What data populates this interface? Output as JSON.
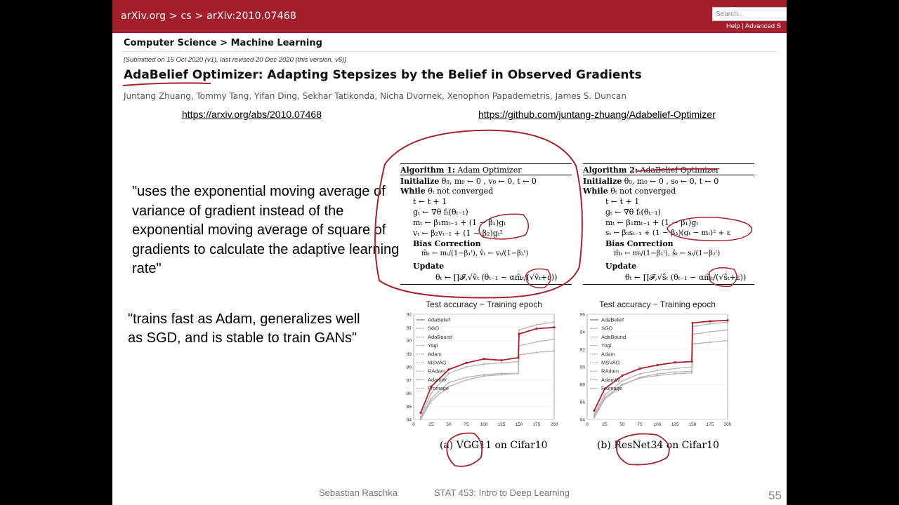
{
  "arxiv": {
    "breadcrumb": "arXiv.org > cs > arXiv:2010.07468",
    "search_placeholder": "Search...",
    "help_links": "Help | Advanced S",
    "subject": "Computer Science > Machine Learning",
    "submitted": "[Submitted on 15 Oct 2020 (v1), last revised 20 Dec 2020 (this version, v5)]",
    "title": "AdaBelief Optimizer: Adapting Stepsizes by the Belief in Observed Gradients",
    "authors": "Juntang Zhuang, Tommy Tang, Yifan Ding, Sekhar Tatikonda, Nicha Dvornek, Xenophon Papademetris, James S. Duncan"
  },
  "links": {
    "arxiv_url": "https://arxiv.org/abs/2010.07468",
    "github_url": "https://github.com/juntang-zhuang/Adabelief-Optimizer"
  },
  "quotes": {
    "quote1": "\"uses the exponential moving average of variance of gradient instead of the exponential moving average of square of gradients to calculate the adaptive learning rate\"",
    "quote2": "\"trains fast as Adam, generalizes well as SGD, and is stable to train GANs\""
  },
  "algorithm1": {
    "header_bold": "Algorithm 1:",
    "header_rest": " Adam Optimizer",
    "init_kw": "Initialize",
    "init": " θ₀, m₀ ← 0 , v₀ ← 0, t ← 0",
    "while_kw": "While",
    "while": " θₜ not converged",
    "step_t": "t ← t + 1",
    "step_g": "gₜ ← ∇θ fₜ(θₜ₋₁)",
    "step_m": "mₜ ← β₁mₜ₋₁ + (1 − β₁)gₜ",
    "step_v": "vₜ ← β₂vₜ₋₁ + (1 − β₂)gₜ²",
    "bias_kw": "Bias Correction",
    "bias": "m̂ₜ ← mₜ/(1−β₁ᵗ), v̂ₜ ← vₜ/(1−β₂ᵗ)",
    "update_kw": "Update",
    "update": "θₜ ← ∏𝓕,√v̂ₜ (θₜ₋₁ − αm̂ₜ/(√v̂ₜ+ε))"
  },
  "algorithm2": {
    "header_bold": "Algorithm 2:",
    "header_rest": " AdaBelief Optimizer",
    "init_kw": "Initialize",
    "init": " θ₀, m₀ ← 0 , s₀ ← 0, t ← 0",
    "while_kw": "While",
    "while": " θₜ not converged",
    "step_t": "t ← t + 1",
    "step_g": "gₜ ← ∇θ fₜ(θₜ₋₁)",
    "step_m": "mₜ ← β₁mₜ₋₁ + (1 − β₁)gₜ",
    "step_s": "sₜ ← β₂sₜ₋₁ + (1 − β₂)(gₜ − mₜ)² + ε",
    "bias_kw": "Bias Correction",
    "bias": "m̂ₜ ← mₜ/(1−β₁ᵗ), ŝₜ ← sₜ/(1−β₂ᵗ)",
    "update_kw": "Update",
    "update": "θₜ ← ∏𝓕,√ŝₜ (θₜ₋₁ − αm̂ₜ/(√ŝₜ+ε))"
  },
  "chart_data": [
    {
      "type": "line",
      "title": "Test accuracy ~ Training epoch",
      "caption": "(a) VGG11 on Cifar10",
      "xlim": [
        0,
        200
      ],
      "ylim": [
        84,
        92
      ],
      "x_ticks": [
        0,
        25,
        50,
        75,
        100,
        125,
        150,
        175,
        200
      ],
      "y_ticks": [
        84,
        85,
        86,
        87,
        88,
        89,
        90,
        91,
        92
      ],
      "legend": [
        "AdaBelief",
        "SGD",
        "AdaBound",
        "Yogi",
        "Adam",
        "MSVAG",
        "RAdam",
        "AdamW",
        "Fromage"
      ],
      "legend_position": "top-left",
      "highlight_series": "AdaBelief",
      "series": [
        {
          "name": "AdaBelief",
          "x": [
            10,
            25,
            50,
            75,
            100,
            125,
            149,
            150,
            175,
            200
          ],
          "y": [
            84.5,
            86.5,
            87.8,
            88.3,
            88.6,
            88.5,
            88.7,
            90.5,
            90.9,
            91.0
          ]
        },
        {
          "name": "SGD",
          "x": [
            10,
            25,
            50,
            75,
            100,
            125,
            149,
            150,
            175,
            200
          ],
          "y": [
            84.2,
            86.0,
            87.5,
            88.0,
            88.2,
            88.3,
            88.4,
            90.8,
            91.2,
            91.4
          ]
        },
        {
          "name": "Adam",
          "x": [
            10,
            25,
            50,
            75,
            100,
            125,
            149,
            150,
            175,
            200
          ],
          "y": [
            84.1,
            85.6,
            86.8,
            87.2,
            87.4,
            87.5,
            87.5,
            88.9,
            89.1,
            89.2
          ]
        },
        {
          "name": "AdaBound",
          "x": [
            10,
            25,
            50,
            75,
            100,
            125,
            149,
            150,
            175,
            200
          ],
          "y": [
            84.0,
            85.4,
            86.5,
            87.0,
            87.3,
            87.4,
            87.5,
            89.6,
            89.9,
            90.1
          ]
        }
      ]
    },
    {
      "type": "line",
      "title": "Test accuracy ~ Training epoch",
      "caption": "(b) ResNet34 on Cifar10",
      "xlim": [
        0,
        200
      ],
      "ylim": [
        84,
        96
      ],
      "x_ticks": [
        0,
        25,
        50,
        75,
        100,
        125,
        150,
        175,
        200
      ],
      "y_ticks": [
        84,
        86,
        88,
        90,
        92,
        94,
        96
      ],
      "legend": [
        "AdaBelief",
        "SGD",
        "AdaBound",
        "Yogi",
        "Adam",
        "MSVAG",
        "RAdam",
        "AdamW",
        "Fromage"
      ],
      "legend_position": "top-left",
      "highlight_series": "AdaBelief",
      "series": [
        {
          "name": "AdaBelief",
          "x": [
            10,
            25,
            50,
            75,
            100,
            125,
            149,
            150,
            175,
            200
          ],
          "y": [
            85.0,
            87.5,
            89.0,
            89.8,
            90.2,
            90.5,
            90.6,
            95.0,
            95.2,
            95.3
          ]
        },
        {
          "name": "SGD",
          "x": [
            10,
            25,
            50,
            75,
            100,
            125,
            149,
            150,
            175,
            200
          ],
          "y": [
            84.6,
            86.8,
            88.4,
            89.2,
            89.6,
            89.8,
            90.0,
            94.6,
            94.9,
            95.1
          ]
        },
        {
          "name": "Adam",
          "x": [
            10,
            25,
            50,
            75,
            100,
            125,
            149,
            150,
            175,
            200
          ],
          "y": [
            84.4,
            86.5,
            88.0,
            88.7,
            89.0,
            89.2,
            89.3,
            92.6,
            92.8,
            93.0
          ]
        },
        {
          "name": "AdaBound",
          "x": [
            10,
            25,
            50,
            75,
            100,
            125,
            149,
            150,
            175,
            200
          ],
          "y": [
            84.2,
            86.3,
            87.9,
            88.8,
            89.2,
            89.4,
            89.5,
            93.7,
            94.0,
            94.2
          ]
        }
      ]
    }
  ],
  "footer": {
    "author": "Sebastian Raschka",
    "course": "STAT 453: Intro to Deep Learning",
    "page": "55"
  },
  "colors": {
    "arxiv_red": "#a41e2b",
    "ink_red": "#a8232e",
    "highlight_series": "#b0202a",
    "other_series": "#b9b0b8"
  }
}
